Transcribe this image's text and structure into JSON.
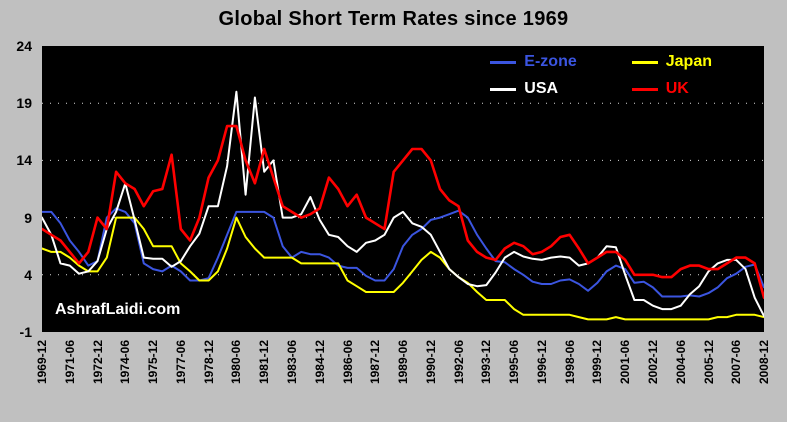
{
  "watermark": "AshrafLaidi.com",
  "colors": {
    "background": "#c0c0c0",
    "plot_background": "#000000",
    "grid": "#ffffff",
    "title_text": "#000000"
  },
  "chart_data": {
    "type": "line",
    "title": "Global Short Term Rates since 1969",
    "ylabel": "",
    "xlabel": "",
    "ylim": [
      -1,
      24
    ],
    "y_ticks": [
      24,
      19,
      14,
      9,
      4,
      -1
    ],
    "grid": "dotted-horizontal",
    "legend_position": "top-right-inside",
    "x_points": 79,
    "x_tick_every": 3,
    "x_start": "1969-12",
    "x_step_months": 6,
    "x_tick_labels": [
      "1969-12",
      "1971-06",
      "1972-12",
      "1974-06",
      "1975-12",
      "1977-06",
      "1978-12",
      "1980-06",
      "1981-12",
      "1983-06",
      "1984-12",
      "1986-06",
      "1987-12",
      "1989-06",
      "1990-12",
      "1992-06",
      "1993-12",
      "1995-06",
      "1996-12",
      "1998-06",
      "1999-12",
      "2001-06",
      "2002-12",
      "2004-06",
      "2005-12",
      "2007-06",
      "2008-12"
    ],
    "series": [
      {
        "name": "E-zone",
        "color": "#3b55e0",
        "stroke_width": 2,
        "values": [
          9.5,
          9.5,
          8.5,
          7.0,
          6.0,
          4.8,
          5.2,
          9.0,
          9.8,
          9.5,
          8.5,
          5.0,
          4.5,
          4.3,
          4.8,
          4.3,
          3.5,
          3.5,
          3.7,
          5.5,
          7.5,
          9.5,
          9.5,
          9.5,
          9.5,
          9.0,
          6.5,
          5.5,
          6.0,
          5.8,
          5.8,
          5.5,
          4.8,
          4.6,
          4.6,
          3.9,
          3.5,
          3.5,
          4.5,
          6.5,
          7.5,
          8.0,
          8.8,
          9.0,
          9.3,
          9.6,
          9.0,
          7.5,
          6.3,
          5.2,
          5.1,
          4.5,
          4.0,
          3.4,
          3.2,
          3.2,
          3.5,
          3.6,
          3.2,
          2.6,
          3.3,
          4.3,
          4.8,
          4.5,
          3.3,
          3.4,
          2.9,
          2.1,
          2.1,
          2.1,
          2.2,
          2.1,
          2.4,
          2.9,
          3.7,
          4.1,
          4.7,
          4.9,
          2.9
        ]
      },
      {
        "name": "Japan",
        "color": "#ffff00",
        "stroke_width": 2,
        "values": [
          6.3,
          6.0,
          6.0,
          5.5,
          4.8,
          4.3,
          4.3,
          5.5,
          9.0,
          9.0,
          9.0,
          8.0,
          6.5,
          6.5,
          6.5,
          5.0,
          4.3,
          3.5,
          3.5,
          4.3,
          6.3,
          9.0,
          7.3,
          6.3,
          5.5,
          5.5,
          5.5,
          5.5,
          5.0,
          5.0,
          5.0,
          5.0,
          5.0,
          3.5,
          3.0,
          2.5,
          2.5,
          2.5,
          2.5,
          3.3,
          4.3,
          5.3,
          6.0,
          5.5,
          4.5,
          3.8,
          3.3,
          2.5,
          1.8,
          1.8,
          1.8,
          1.0,
          0.5,
          0.5,
          0.5,
          0.5,
          0.5,
          0.5,
          0.3,
          0.1,
          0.1,
          0.1,
          0.3,
          0.1,
          0.1,
          0.1,
          0.1,
          0.1,
          0.1,
          0.1,
          0.1,
          0.1,
          0.1,
          0.3,
          0.3,
          0.5,
          0.5,
          0.5,
          0.3
        ]
      },
      {
        "name": "USA",
        "color": "#ffffff",
        "stroke_width": 2,
        "values": [
          9.0,
          7.5,
          5.0,
          4.8,
          4.1,
          4.3,
          5.2,
          8.0,
          9.5,
          12.0,
          8.8,
          5.5,
          5.4,
          5.4,
          4.7,
          5.2,
          6.5,
          7.6,
          10.0,
          10.0,
          13.5,
          20.0,
          11.0,
          19.5,
          13.0,
          14.0,
          9.0,
          9.0,
          9.3,
          10.8,
          8.8,
          7.5,
          7.3,
          6.5,
          6.0,
          6.8,
          7.0,
          7.5,
          9.0,
          9.5,
          8.5,
          8.2,
          7.5,
          6.0,
          4.5,
          3.8,
          3.2,
          3.0,
          3.1,
          4.2,
          5.5,
          6.0,
          5.6,
          5.4,
          5.3,
          5.5,
          5.6,
          5.5,
          4.8,
          5.0,
          5.5,
          6.5,
          6.4,
          4.0,
          1.8,
          1.8,
          1.3,
          1.0,
          1.0,
          1.3,
          2.3,
          3.0,
          4.3,
          5.0,
          5.3,
          5.3,
          4.5,
          2.0,
          0.4
        ]
      },
      {
        "name": "UK",
        "color": "#ff0000",
        "stroke_width": 2.6,
        "values": [
          8.0,
          7.5,
          7.0,
          6.0,
          5.0,
          6.0,
          9.0,
          8.0,
          13.0,
          12.0,
          11.5,
          10.0,
          11.3,
          11.5,
          14.5,
          8.0,
          7.0,
          9.0,
          12.5,
          14.0,
          17.0,
          17.0,
          14.0,
          12.0,
          15.0,
          12.5,
          10.0,
          9.5,
          9.0,
          9.3,
          9.8,
          12.5,
          11.5,
          10.0,
          11.0,
          9.0,
          8.5,
          8.0,
          13.0,
          14.0,
          15.0,
          15.0,
          14.0,
          11.5,
          10.5,
          10.0,
          7.0,
          6.0,
          5.5,
          5.3,
          6.3,
          6.8,
          6.5,
          5.8,
          6.0,
          6.5,
          7.3,
          7.5,
          6.3,
          5.0,
          5.5,
          6.0,
          6.0,
          5.3,
          4.0,
          4.0,
          4.0,
          3.8,
          3.8,
          4.5,
          4.8,
          4.8,
          4.5,
          4.5,
          5.0,
          5.5,
          5.5,
          5.0,
          2.0
        ]
      }
    ]
  }
}
